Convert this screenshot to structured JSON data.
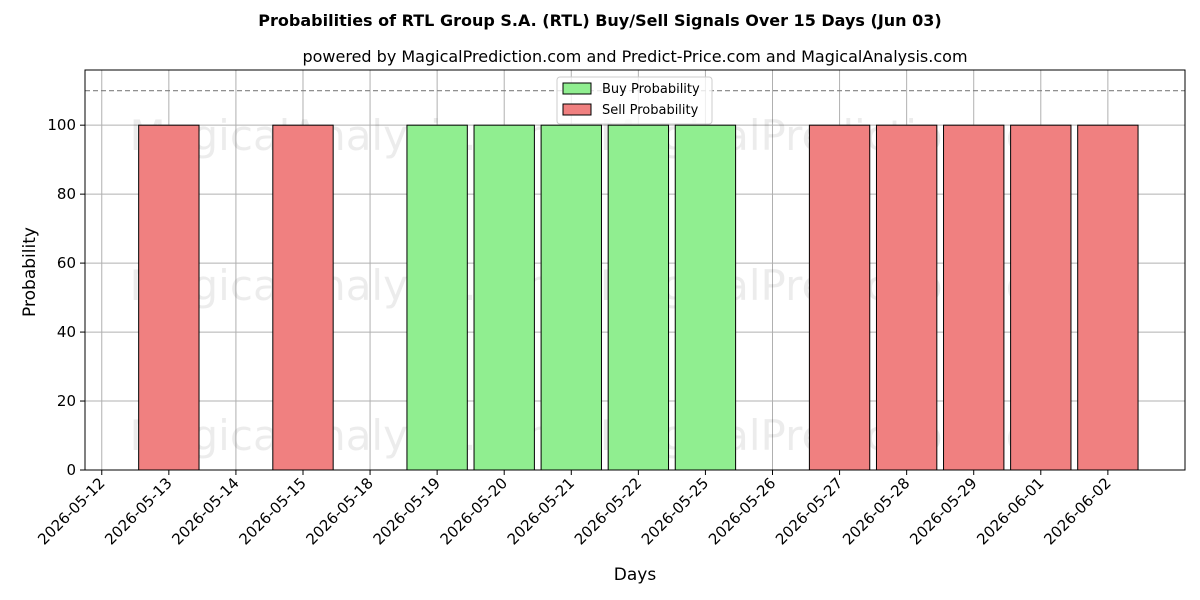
{
  "chart_data": {
    "type": "bar",
    "title": "Probabilities of RTL Group S.A. (RTL) Buy/Sell Signals Over 15 Days (Jun 03)",
    "subtitle": "powered by MagicalPrediction.com and Predict-Price.com and MagicalAnalysis.com",
    "xlabel": "Days",
    "ylabel": "Probability",
    "ylim": [
      0,
      116
    ],
    "yticks": [
      0,
      20,
      40,
      60,
      80,
      100
    ],
    "reference_line": 110,
    "grid": true,
    "legend_position": "top-center",
    "categories": [
      "2026-05-12",
      "2026-05-13",
      "2026-05-14",
      "2026-05-15",
      "2026-05-18",
      "2026-05-19",
      "2026-05-20",
      "2026-05-21",
      "2026-05-22",
      "2026-05-25",
      "2026-05-26",
      "2026-05-27",
      "2026-05-28",
      "2026-05-29",
      "2026-06-01",
      "2026-06-02"
    ],
    "series": [
      {
        "name": "Buy Probability",
        "color": "#90ee90",
        "values": [
          0,
          0,
          0,
          0,
          0,
          100,
          100,
          100,
          100,
          100,
          0,
          0,
          0,
          0,
          0,
          0
        ]
      },
      {
        "name": "Sell Probability",
        "color": "#f08080",
        "values": [
          0,
          100,
          0,
          100,
          0,
          0,
          0,
          0,
          0,
          0,
          0,
          100,
          100,
          100,
          100,
          100
        ]
      }
    ],
    "watermarks": [
      "MagicalAnalysis.com",
      "MagicalPrediction.com"
    ]
  }
}
